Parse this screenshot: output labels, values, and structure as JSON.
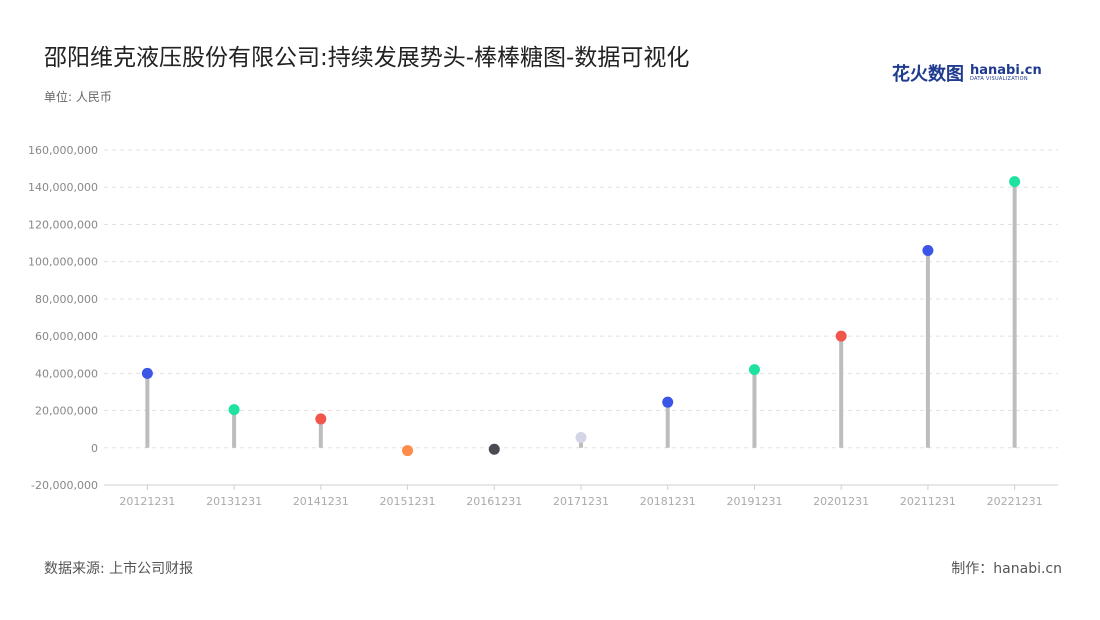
{
  "header": {
    "title": "邵阳维克液压股份有限公司:持续发展势头-棒棒糖图-数据可视化",
    "logo_zh": "花火数图",
    "logo_en": "hanabi.cn",
    "logo_en_sub": "DATA VISUALIZATION"
  },
  "unit_label": "单位: 人民币",
  "footer": {
    "source": "数据来源: 上市公司财报",
    "maker": "制作：hanabi.cn"
  },
  "chart_data": {
    "type": "lollipop",
    "title": "邵阳维克液压股份有限公司:持续发展势头-棒棒糖图-数据可视化",
    "categories": [
      "20121231",
      "20131231",
      "20141231",
      "20151231",
      "20161231",
      "20171231",
      "20181231",
      "20191231",
      "20201231",
      "20211231",
      "20221231"
    ],
    "values": [
      40000000,
      20500000,
      15500000,
      -1500000,
      -800000,
      5500000,
      24500000,
      42000000,
      60000000,
      106000000,
      143000000
    ],
    "dot_colors": [
      "#3b55e6",
      "#1ee3a0",
      "#f0564a",
      "#ff8c4a",
      "#4a4a52",
      "#d4d6e8",
      "#3b55e6",
      "#1ee3a0",
      "#f0564a",
      "#3b55e6",
      "#1ee3a0"
    ],
    "stem_color": "#bdbdbd",
    "ylim": [
      -20000000,
      160000000
    ],
    "yticks": [
      -20000000,
      0,
      20000000,
      40000000,
      60000000,
      80000000,
      100000000,
      120000000,
      140000000,
      160000000
    ],
    "ytick_labels": [
      "-20,000,000",
      "0",
      "20,000,000",
      "40,000,000",
      "60,000,000",
      "80,000,000",
      "100,000,000",
      "120,000,000",
      "140,000,000",
      "160,000,000"
    ],
    "grid": true,
    "xlabel": "",
    "ylabel": ""
  }
}
